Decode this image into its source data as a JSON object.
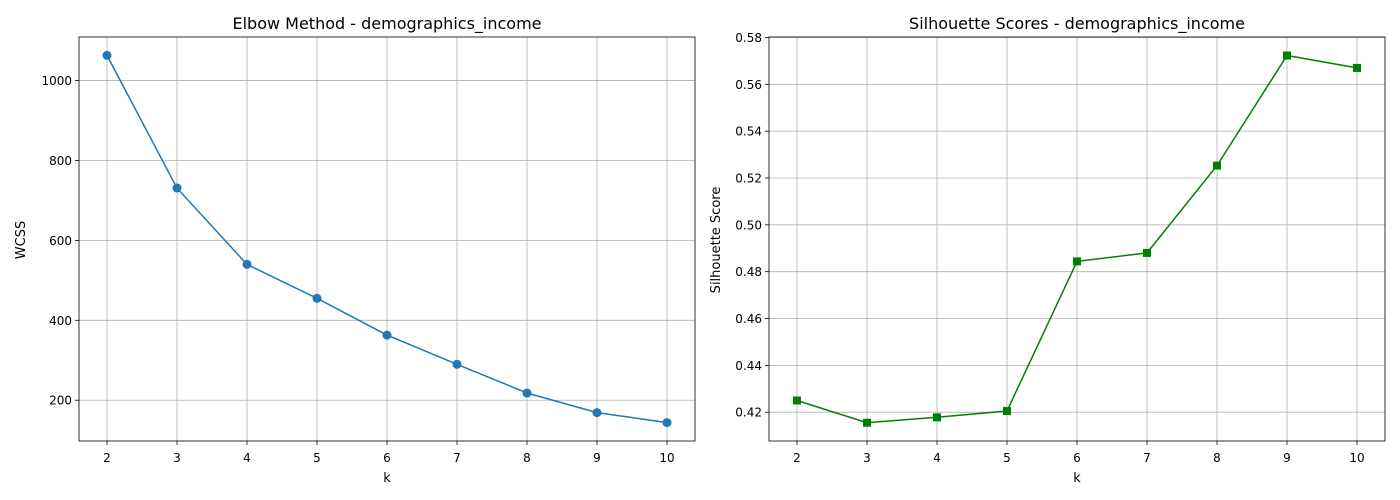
{
  "chart_data": [
    {
      "type": "line",
      "title": "Elbow Method - demographics_income",
      "xlabel": "k",
      "ylabel": "WCSS",
      "x": [
        2,
        3,
        4,
        5,
        6,
        7,
        8,
        9,
        10
      ],
      "series": [
        {
          "values": [
            1063,
            731,
            540,
            455,
            363,
            290,
            218,
            169,
            144
          ],
          "color": "#1f77b4",
          "marker": "circle"
        }
      ],
      "xticks": [
        "2",
        "3",
        "4",
        "5",
        "6",
        "7",
        "8",
        "9",
        "10"
      ],
      "yticks": [
        200,
        400,
        600,
        800,
        1000
      ],
      "ytick_labels": [
        "200",
        "400",
        "600",
        "800",
        "1000"
      ],
      "xlim": [
        1.6,
        10.4
      ],
      "ylim": [
        98,
        1109
      ],
      "grid": true
    },
    {
      "type": "line",
      "title": "Silhouette Scores - demographics_income",
      "xlabel": "k",
      "ylabel": "Silhouette Score",
      "x": [
        2,
        3,
        4,
        5,
        6,
        7,
        8,
        9,
        10
      ],
      "series": [
        {
          "values": [
            0.425,
            0.4155,
            0.4178,
            0.4205,
            0.4844,
            0.488,
            0.5253,
            0.5723,
            0.567
          ],
          "color": "#008000",
          "marker": "square"
        }
      ],
      "xticks": [
        "2",
        "3",
        "4",
        "5",
        "6",
        "7",
        "8",
        "9",
        "10"
      ],
      "yticks": [
        0.42,
        0.44,
        0.46,
        0.48,
        0.5,
        0.52,
        0.54,
        0.56,
        0.58
      ],
      "ytick_labels": [
        "0.42",
        "0.44",
        "0.46",
        "0.48",
        "0.50",
        "0.52",
        "0.54",
        "0.56",
        "0.58"
      ],
      "xlim": [
        1.6,
        10.4
      ],
      "ylim": [
        0.4077,
        0.5802
      ],
      "grid": true
    }
  ]
}
